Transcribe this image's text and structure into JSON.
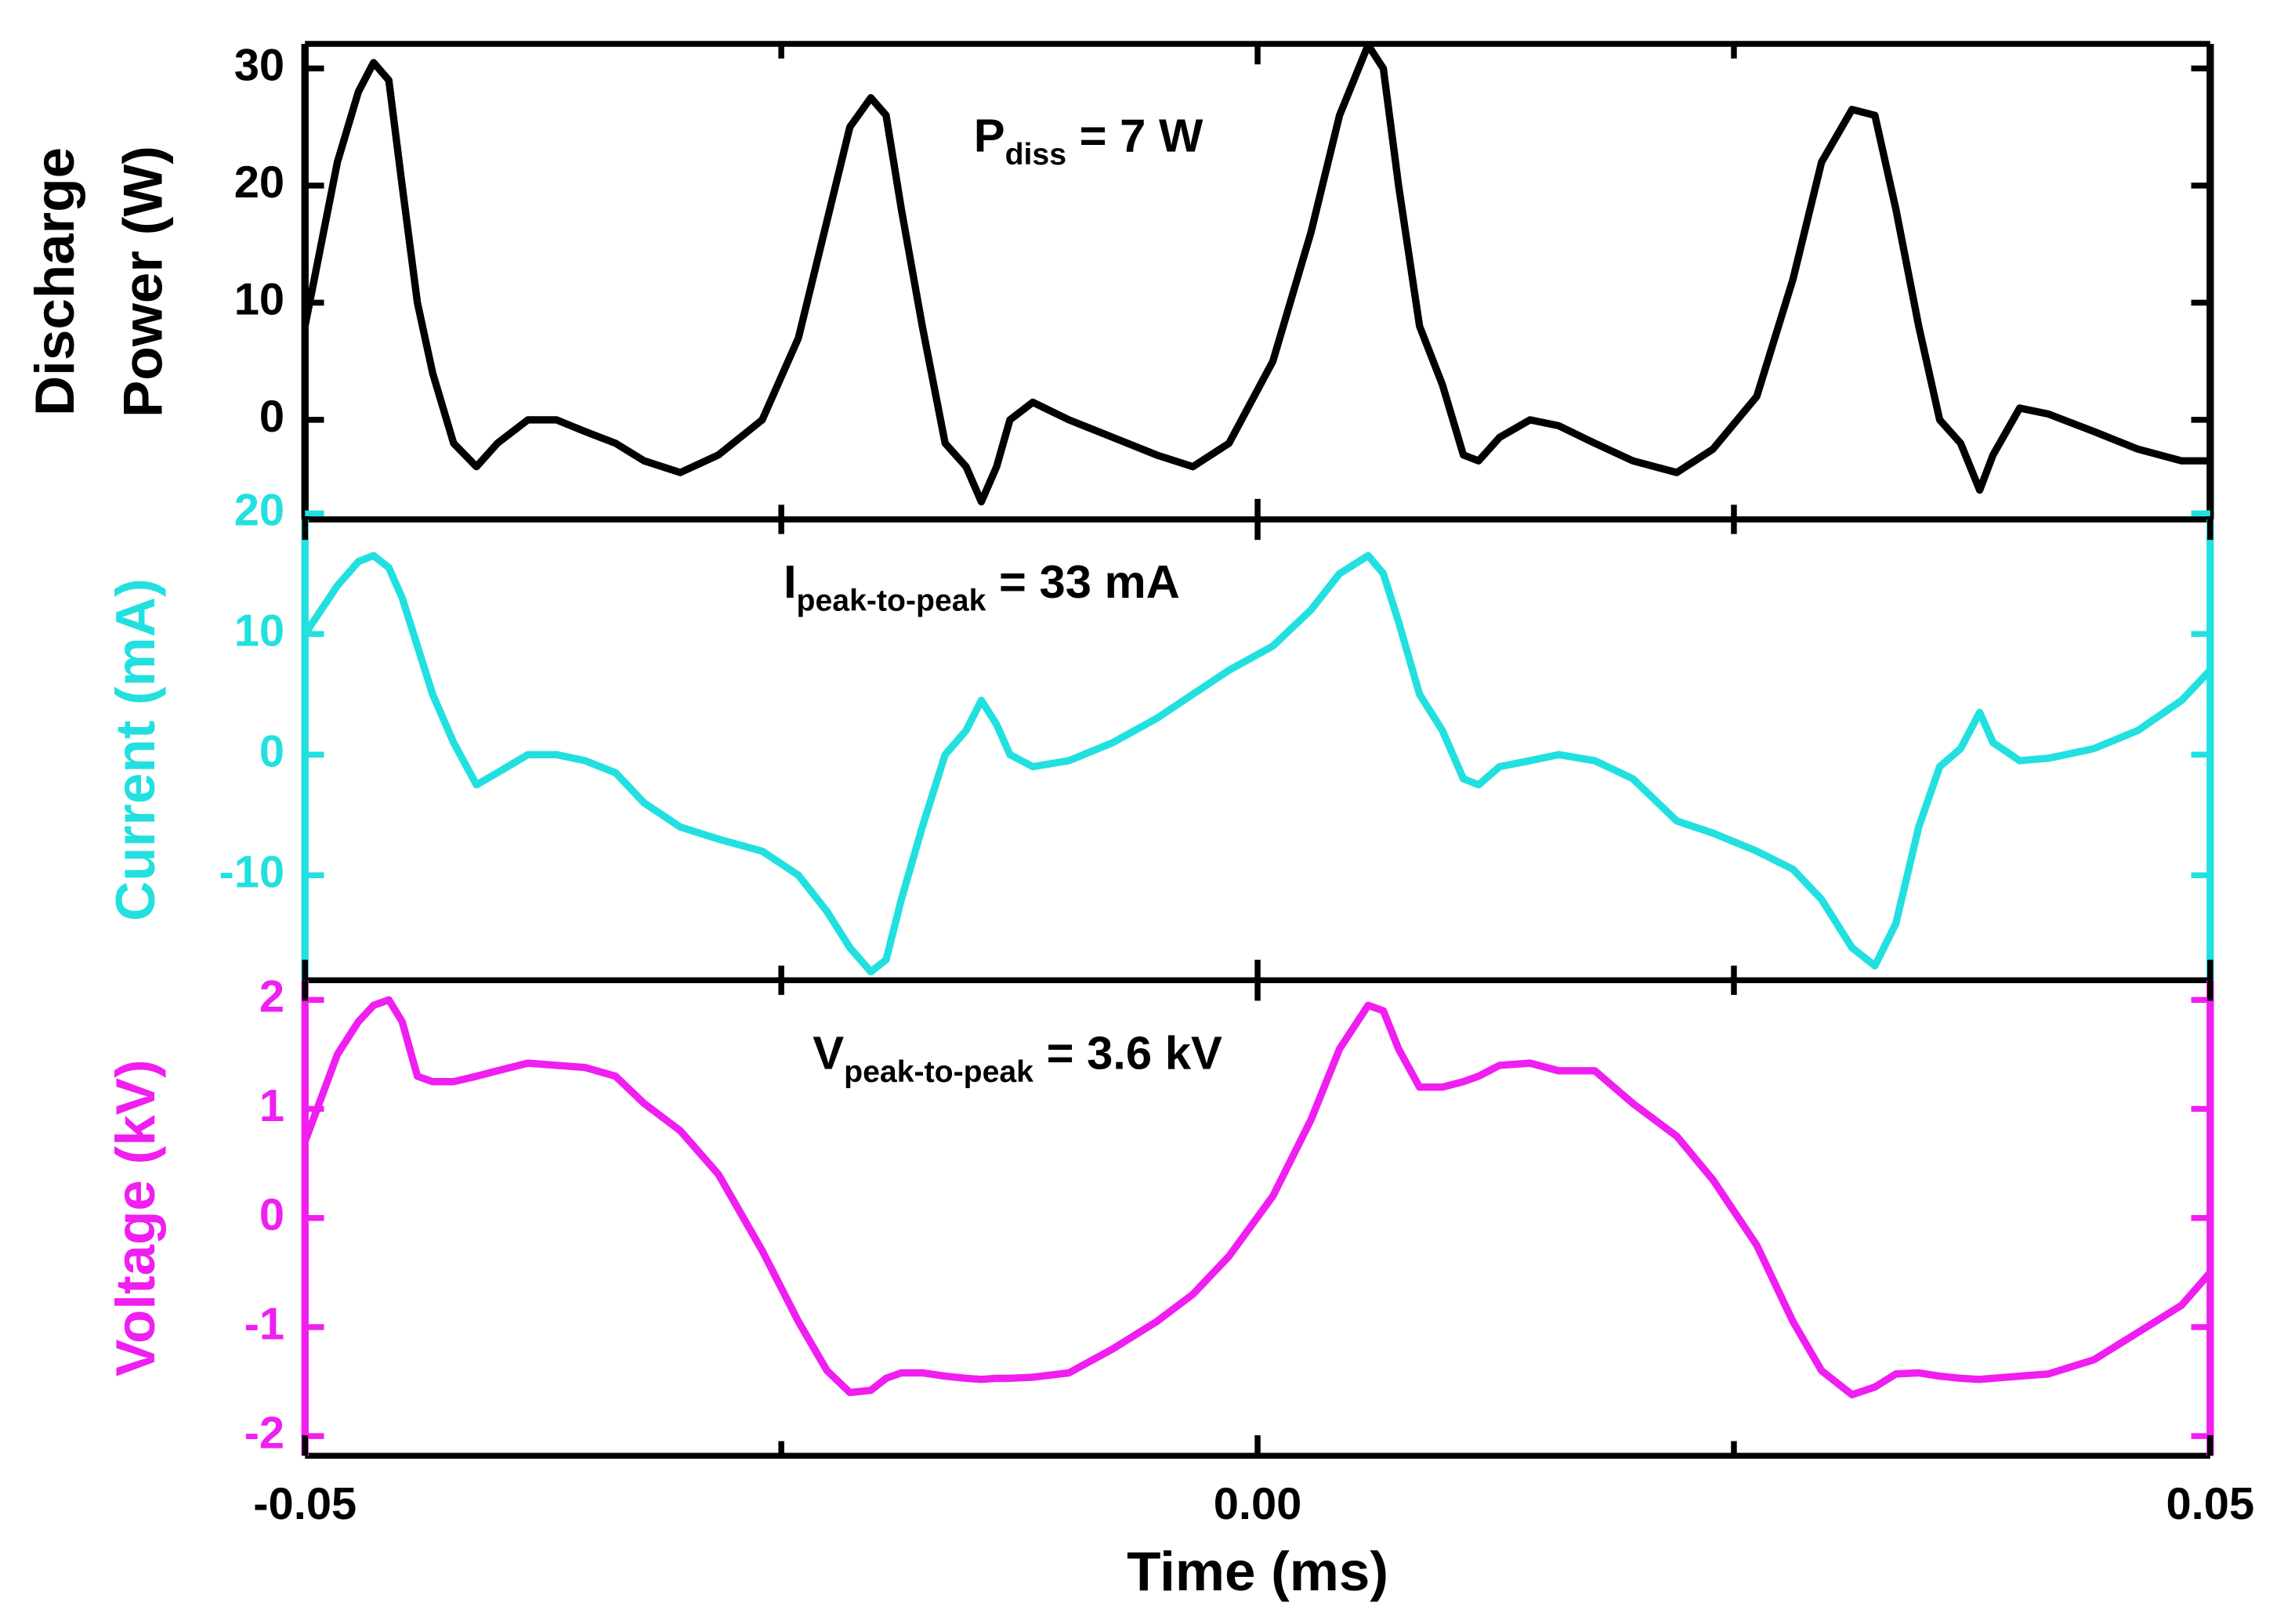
{
  "chart_data": [
    {
      "type": "line",
      "ylabel": [
        "Discharge",
        "Power (W)"
      ],
      "color": "#000000",
      "annotation": {
        "main": "P",
        "sub": "diss",
        "rest": " = 7 W"
      },
      "xlim": [
        -0.05,
        0.05
      ],
      "xticks": [
        -0.05,
        0,
        0.05
      ],
      "xminorticks": [
        -0.025,
        0.025
      ],
      "ylim": [
        -8.5,
        32.1
      ],
      "yticks": [
        0,
        10,
        20,
        30
      ],
      "x": [
        -0.05,
        -0.0483,
        -0.0472,
        -0.0464,
        -0.0456,
        -0.0449,
        -0.0441,
        -0.0433,
        -0.0422,
        -0.041,
        -0.0399,
        -0.0383,
        -0.0368,
        -0.0353,
        -0.0337,
        -0.0322,
        -0.0303,
        -0.0283,
        -0.026,
        -0.0241,
        -0.0226,
        -0.0214,
        -0.0203,
        -0.0195,
        -0.0187,
        -0.0176,
        -0.0164,
        -0.0153,
        -0.0145,
        -0.0137,
        -0.013,
        -0.0118,
        -0.0099,
        -0.0076,
        -0.0053,
        -0.0034,
        -0.0015,
        0.0008,
        0.0028,
        0.0043,
        0.0058,
        0.0066,
        0.0074,
        0.0085,
        0.0097,
        0.0108,
        0.0116,
        0.0127,
        0.0143,
        0.0158,
        0.0177,
        0.0197,
        0.022,
        0.0239,
        0.0262,
        0.0281,
        0.0296,
        0.0312,
        0.0324,
        0.0335,
        0.0347,
        0.0358,
        0.0369,
        0.0379,
        0.0386,
        0.04,
        0.0415,
        0.0439,
        0.0462,
        0.0485,
        0.05
      ],
      "values": [
        8,
        22,
        28,
        30.5,
        29,
        20,
        10,
        4,
        -2,
        -4,
        -2,
        0,
        0,
        -1,
        -2,
        -3.5,
        -4.5,
        -3,
        0,
        7,
        17,
        25,
        27.5,
        26,
        18,
        8,
        -2,
        -4,
        -7,
        -4,
        0,
        1.5,
        0,
        -1.5,
        -3,
        -4,
        -2,
        5,
        16,
        26,
        32,
        30,
        20,
        8,
        3,
        -3,
        -3.5,
        -1.5,
        0,
        -0.5,
        -2,
        -3.5,
        -4.5,
        -2.5,
        2,
        12,
        22,
        26.5,
        26,
        18,
        8,
        0,
        -2,
        -6,
        -3,
        1,
        0.5,
        -1,
        -2.5,
        -3.5,
        -3.5
      ]
    },
    {
      "type": "line",
      "ylabel": [
        "Current (mA)"
      ],
      "color": "#22e0e0",
      "annotation": {
        "main": "I",
        "sub": "peak-to-peak",
        "rest": " = 33 mA"
      },
      "xlim": [
        -0.05,
        0.05
      ],
      "xticks": [
        -0.05,
        0,
        0.05
      ],
      "xminorticks": [
        -0.025,
        0.025
      ],
      "ylim": [
        -18.7,
        19.5
      ],
      "yticks": [
        -10,
        0,
        10,
        20
      ],
      "x": [
        -0.05,
        -0.0483,
        -0.0472,
        -0.0464,
        -0.0456,
        -0.0449,
        -0.0441,
        -0.0433,
        -0.0422,
        -0.041,
        -0.0399,
        -0.0383,
        -0.0368,
        -0.0353,
        -0.0337,
        -0.0322,
        -0.0303,
        -0.0283,
        -0.026,
        -0.0241,
        -0.0226,
        -0.0214,
        -0.0203,
        -0.0195,
        -0.0187,
        -0.0176,
        -0.0164,
        -0.0153,
        -0.0145,
        -0.0137,
        -0.013,
        -0.0118,
        -0.0099,
        -0.0076,
        -0.0053,
        -0.0034,
        -0.0015,
        0.0008,
        0.0028,
        0.0043,
        0.0058,
        0.0066,
        0.0074,
        0.0085,
        0.0097,
        0.0108,
        0.0116,
        0.0127,
        0.0143,
        0.0158,
        0.0177,
        0.0197,
        0.022,
        0.0239,
        0.0262,
        0.0281,
        0.0296,
        0.0312,
        0.0324,
        0.0335,
        0.0347,
        0.0358,
        0.0369,
        0.0379,
        0.0386,
        0.04,
        0.0415,
        0.0439,
        0.0462,
        0.0485,
        0.05
      ],
      "values": [
        10,
        14,
        16,
        16.5,
        15.5,
        13,
        9,
        5,
        1,
        -2.5,
        -1.5,
        0,
        0,
        -0.5,
        -1.5,
        -4,
        -6,
        -7,
        -8,
        -10,
        -13,
        -16,
        -18,
        -17,
        -12,
        -6,
        0,
        2,
        4.5,
        2.5,
        0,
        -1,
        -0.5,
        1,
        3,
        5,
        7,
        9,
        12,
        15,
        16.5,
        15,
        11,
        5,
        2,
        -2,
        -2.5,
        -1,
        -0.5,
        0,
        -0.5,
        -2,
        -5.5,
        -6.5,
        -8,
        -9.5,
        -12,
        -16,
        -17.5,
        -14,
        -6,
        -1,
        0.5,
        3.5,
        1,
        -0.5,
        -0.3,
        0.5,
        2,
        4.5,
        7
      ]
    },
    {
      "type": "line",
      "ylabel": [
        "Voltage (kV)"
      ],
      "xlabel": "Time (ms)",
      "color": "#f01ef0",
      "annotation": {
        "main": "V",
        "sub": "peak-to-peak",
        "rest": " = 3.6 kV"
      },
      "xlim": [
        -0.05,
        0.05
      ],
      "xticks": [
        -0.05,
        {
          "value": 0,
          "label": "0.00"
        },
        0.05
      ],
      "xminorticks": [
        -0.025,
        0.025
      ],
      "ylim": [
        -2.18,
        2.18
      ],
      "yticks": [
        -2,
        -1,
        0,
        1,
        2
      ],
      "x": [
        -0.05,
        -0.0483,
        -0.0472,
        -0.0464,
        -0.0456,
        -0.0449,
        -0.0441,
        -0.0433,
        -0.0422,
        -0.041,
        -0.0399,
        -0.0383,
        -0.0368,
        -0.0353,
        -0.0337,
        -0.0322,
        -0.0303,
        -0.0283,
        -0.026,
        -0.0241,
        -0.0226,
        -0.0214,
        -0.0203,
        -0.0195,
        -0.0187,
        -0.0176,
        -0.0164,
        -0.0153,
        -0.0145,
        -0.0137,
        -0.013,
        -0.0118,
        -0.0099,
        -0.0076,
        -0.0053,
        -0.0034,
        -0.0015,
        0.0008,
        0.0028,
        0.0043,
        0.0058,
        0.0066,
        0.0074,
        0.0085,
        0.0097,
        0.0108,
        0.0116,
        0.0127,
        0.0143,
        0.0158,
        0.0177,
        0.0197,
        0.022,
        0.0239,
        0.0262,
        0.0281,
        0.0296,
        0.0312,
        0.0324,
        0.0335,
        0.0347,
        0.0358,
        0.0369,
        0.0379,
        0.0386,
        0.04,
        0.0415,
        0.0439,
        0.0462,
        0.0485,
        0.05
      ],
      "values": [
        0.7,
        1.5,
        1.8,
        1.95,
        2.0,
        1.8,
        1.3,
        1.25,
        1.25,
        1.3,
        1.35,
        1.42,
        1.4,
        1.38,
        1.3,
        1.05,
        0.8,
        0.4,
        -0.3,
        -0.95,
        -1.4,
        -1.6,
        -1.58,
        -1.47,
        -1.42,
        -1.42,
        -1.45,
        -1.47,
        -1.48,
        -1.47,
        -1.47,
        -1.46,
        -1.42,
        -1.2,
        -0.95,
        -0.7,
        -0.35,
        0.2,
        0.9,
        1.55,
        1.95,
        1.9,
        1.55,
        1.2,
        1.2,
        1.25,
        1.3,
        1.4,
        1.42,
        1.35,
        1.35,
        1.05,
        0.75,
        0.35,
        -0.25,
        -0.95,
        -1.4,
        -1.62,
        -1.55,
        -1.43,
        -1.42,
        -1.45,
        -1.47,
        -1.48,
        -1.47,
        -1.45,
        -1.43,
        -1.3,
        -1.05,
        -0.8,
        -0.5
      ]
    }
  ]
}
